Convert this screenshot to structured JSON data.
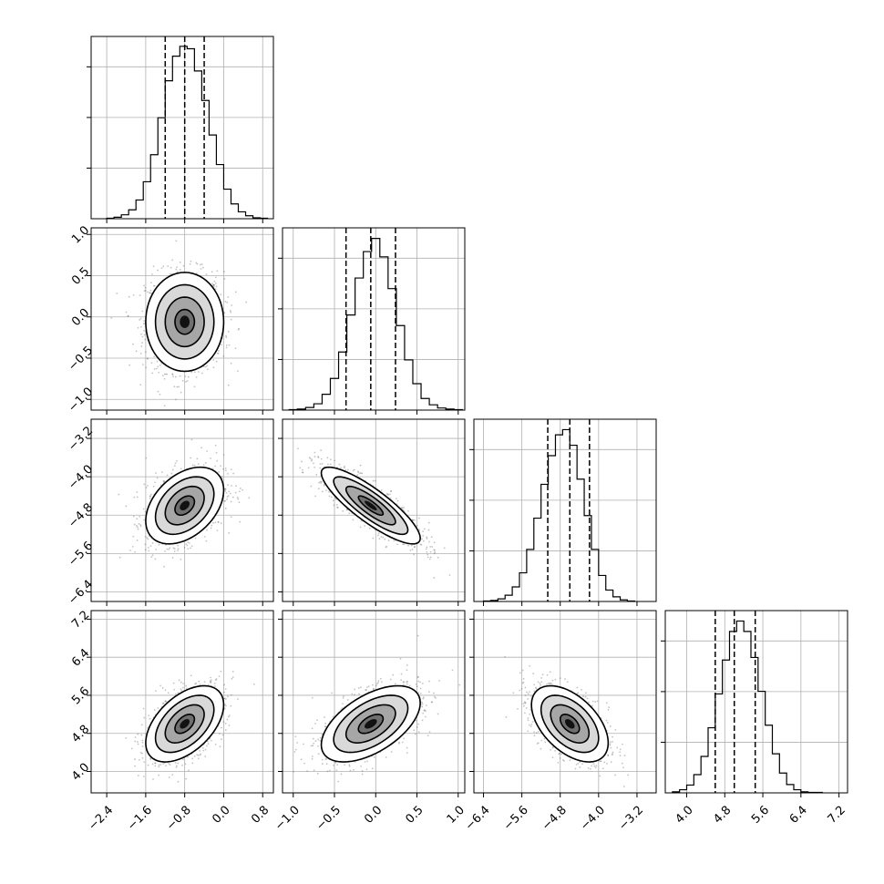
{
  "chart_data": {
    "type": "corner",
    "title": "",
    "grid": true,
    "parameters": [
      {
        "mean": -0.8,
        "std": 0.4,
        "range": [
          -2.72,
          1.02
        ],
        "ticks": [
          "−2.4",
          "−1.6",
          "−0.8",
          "0.0",
          "0.8"
        ],
        "tick_values": [
          -2.4,
          -1.6,
          -0.8,
          0.0,
          0.8
        ],
        "quantiles": [
          -1.2,
          -0.8,
          -0.4
        ]
      },
      {
        "mean": -0.06,
        "std": 0.3,
        "range": [
          -1.13,
          1.08
        ],
        "ticks": [
          "−1.0",
          "−0.5",
          "0.0",
          "0.5",
          "1.0"
        ],
        "tick_values": [
          -1.0,
          -0.5,
          0.0,
          0.5,
          1.0
        ],
        "quantiles": [
          -0.36,
          -0.06,
          0.24
        ]
      },
      {
        "mean": -4.6,
        "std": 0.4,
        "range": [
          -6.6,
          -2.8
        ],
        "ticks": [
          "−6.4",
          "−5.6",
          "−4.8",
          "−4.0",
          "−3.2"
        ],
        "tick_values": [
          -6.4,
          -5.6,
          -4.8,
          -4.0,
          -3.2
        ],
        "quantiles": [
          -5.06,
          -4.6,
          -4.19
        ]
      },
      {
        "mean": 5.0,
        "std": 0.4,
        "range": [
          3.55,
          7.38
        ],
        "ticks": [
          "4.0",
          "4.8",
          "5.6",
          "6.4",
          "7.2"
        ],
        "tick_values": [
          4.0,
          4.8,
          5.6,
          6.4,
          7.2
        ],
        "quantiles": [
          4.6,
          5.0,
          5.44
        ]
      }
    ],
    "histograms": [
      {
        "param": 0,
        "bin_edges": [
          -2.4,
          -2.25,
          -2.1,
          -1.95,
          -1.8,
          -1.65,
          -1.5,
          -1.35,
          -1.2,
          -1.05,
          -0.9,
          -0.75,
          -0.6,
          -0.45,
          -0.3,
          -0.15,
          0.0,
          0.15,
          0.3,
          0.45,
          0.6,
          0.75,
          0.9
        ],
        "counts": [
          1,
          3,
          8,
          18,
          38,
          75,
          130,
          205,
          280,
          330,
          350,
          345,
          300,
          240,
          170,
          110,
          60,
          30,
          14,
          6,
          2,
          1
        ],
        "ylim": [
          0,
          370
        ]
      },
      {
        "param": 1,
        "bin_edges": [
          -1.05,
          -0.95,
          -0.85,
          -0.75,
          -0.65,
          -0.55,
          -0.45,
          -0.35,
          -0.25,
          -0.15,
          -0.05,
          0.05,
          0.15,
          0.25,
          0.35,
          0.45,
          0.55,
          0.65,
          0.75,
          0.85,
          0.95,
          1.05
        ],
        "counts": [
          1,
          2,
          5,
          12,
          30,
          60,
          110,
          180,
          250,
          300,
          325,
          290,
          230,
          160,
          95,
          50,
          22,
          10,
          4,
          2,
          1
        ],
        "ylim": [
          0,
          345
        ]
      },
      {
        "param": 2,
        "bin_edges": [
          -6.4,
          -6.25,
          -6.1,
          -5.95,
          -5.8,
          -5.65,
          -5.5,
          -5.35,
          -5.2,
          -5.05,
          -4.9,
          -4.75,
          -4.6,
          -4.45,
          -4.3,
          -4.15,
          -4.0,
          -3.85,
          -3.7,
          -3.55,
          -3.4,
          -3.25
        ],
        "counts": [
          1,
          2,
          5,
          12,
          28,
          55,
          100,
          160,
          225,
          280,
          320,
          330,
          300,
          235,
          165,
          100,
          50,
          22,
          9,
          3,
          1
        ],
        "ylim": [
          0,
          350
        ]
      },
      {
        "param": 3,
        "bin_edges": [
          3.7,
          3.85,
          4.0,
          4.15,
          4.3,
          4.45,
          4.6,
          4.75,
          4.9,
          5.05,
          5.2,
          5.35,
          5.5,
          5.65,
          5.8,
          5.95,
          6.1,
          6.25,
          6.4,
          6.55,
          6.7,
          6.85
        ],
        "counts": [
          2,
          6,
          15,
          35,
          70,
          125,
          190,
          255,
          310,
          330,
          310,
          260,
          195,
          130,
          75,
          38,
          16,
          6,
          2,
          1,
          1
        ],
        "ylim": [
          0,
          350
        ]
      }
    ],
    "joint": [
      {
        "x_param": 0,
        "y_param": 1,
        "correlation": 0.0
      },
      {
        "x_param": 0,
        "y_param": 2,
        "correlation": 0.4
      },
      {
        "x_param": 1,
        "y_param": 2,
        "correlation": -0.85
      },
      {
        "x_param": 0,
        "y_param": 3,
        "correlation": 0.5
      },
      {
        "x_param": 1,
        "y_param": 3,
        "correlation": 0.55
      },
      {
        "x_param": 2,
        "y_param": 3,
        "correlation": -0.5
      }
    ],
    "contour_levels_sigma": [
      0.5,
      1.0,
      1.5,
      2.0
    ],
    "scatter_samples_per_panel": 1200,
    "colors": {
      "line": "#000000",
      "grid": "#b0b0b0",
      "scatter": "#555555",
      "density_max": "#000000",
      "density_min": "#ffffff"
    }
  }
}
